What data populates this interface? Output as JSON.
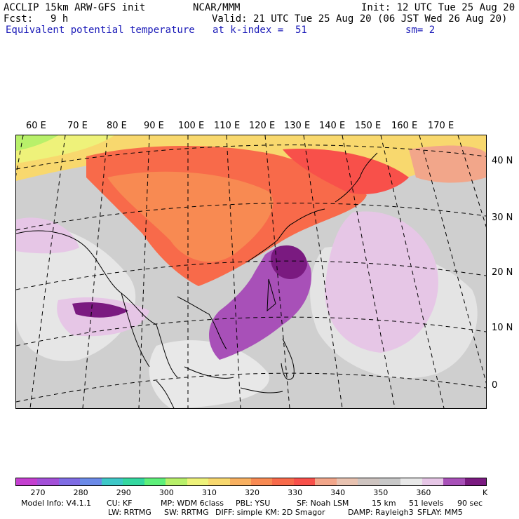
{
  "header": {
    "model": "ACCLIP 15km ARW-GFS init",
    "org": "NCAR/MMM",
    "init": "Init: 12 UTC Tue 25 Aug 20",
    "fcst_label": "Fcst:",
    "fcst_value": "9 h",
    "valid": "Valid: 21 UTC Tue 25 Aug 20 (06 JST Wed 26 Aug 20)",
    "field": "Equivalent potential temperature",
    "level": "at k-index =  51",
    "smooth": "sm= 2"
  },
  "map": {
    "lon_labels": [
      "60 E",
      "70 E",
      "80 E",
      "90 E",
      "100 E",
      "110 E",
      "120 E",
      "130 E",
      "140 E",
      "150 E",
      "160 E",
      "170 E"
    ],
    "lat_labels": [
      "40 N",
      "30 N",
      "20 N",
      "10 N",
      "0"
    ]
  },
  "colorbar": {
    "colors": [
      "#c43fd0",
      "#a34fd8",
      "#7f6ce4",
      "#6b8ae8",
      "#3ec8c8",
      "#34d8a0",
      "#5ef07a",
      "#b8f06a",
      "#eef27a",
      "#f8d86e",
      "#f8b060",
      "#f88a52",
      "#f86a4a",
      "#f8504a",
      "#f2a68a",
      "#e8c2b0",
      "#cec4c0",
      "#c8c8c8",
      "#e8e8e8",
      "#e6c6e6",
      "#a850b8",
      "#7a1a80"
    ],
    "ticks": [
      "270",
      "280",
      "290",
      "300",
      "310",
      "320",
      "330",
      "340",
      "350",
      "360"
    ],
    "unit": "K"
  },
  "footer": {
    "line1": [
      "Model Info: V4.1.1",
      "CU: KF",
      "MP: WDM 6class",
      "PBL: YSU",
      "SF: Noah LSM",
      "15 km",
      "51 levels",
      "90 sec"
    ],
    "line2": [
      "LW: RRTMG",
      "SW: RRTMG",
      "DIFF: simple",
      "KM: 2D Smagor",
      "DAMP: Rayleigh3",
      "SFLAY: MM5"
    ]
  }
}
